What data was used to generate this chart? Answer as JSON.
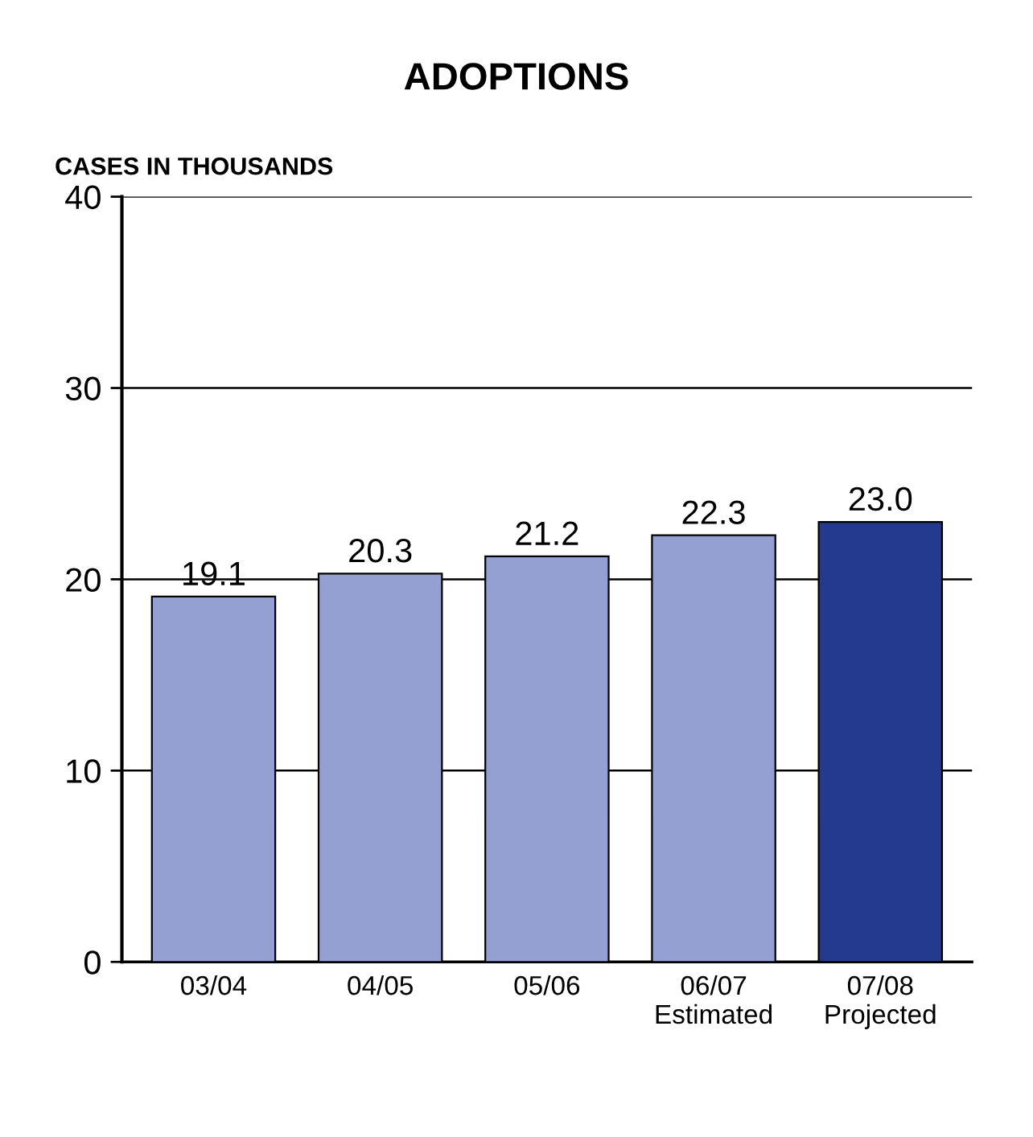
{
  "chart_data": {
    "type": "bar",
    "title": "ADOPTIONS",
    "ylabel": "CASES IN THOUSANDS",
    "categories": [
      "03/04",
      "04/05",
      "05/06",
      "06/07\nEstimated",
      "07/08\nProjected"
    ],
    "values": [
      19.1,
      20.3,
      21.2,
      22.3,
      23.0
    ],
    "value_labels": [
      "19.1",
      "20.3",
      "21.2",
      "22.3",
      "23.0"
    ],
    "colors": [
      "#95a0d2",
      "#95a0d2",
      "#95a0d2",
      "#95a0d2",
      "#233a8f"
    ],
    "ylim": [
      0,
      40
    ],
    "yticks": [
      0,
      10,
      20,
      30,
      40
    ],
    "grid": "y",
    "legend": false
  }
}
